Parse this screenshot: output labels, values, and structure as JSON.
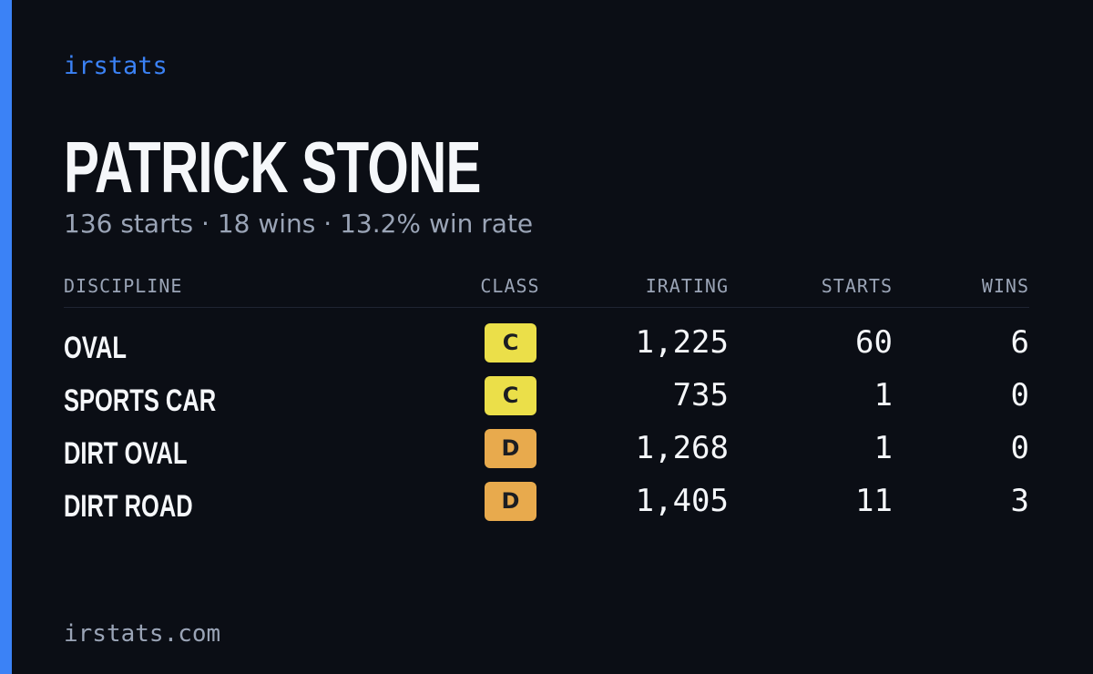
{
  "brand": "irstats",
  "driver": {
    "name": "PATRICK STONE",
    "summary": "136 starts · 18 wins · 13.2% win rate"
  },
  "table": {
    "headers": [
      "DISCIPLINE",
      "CLASS",
      "IRATING",
      "STARTS",
      "WINS"
    ],
    "rows": [
      [
        "OVAL",
        "C",
        "1,225",
        "60",
        "6"
      ],
      [
        "SPORTS CAR",
        "C",
        "735",
        "1",
        "0"
      ],
      [
        "DIRT OVAL",
        "D",
        "1,268",
        "1",
        "0"
      ],
      [
        "DIRT ROAD",
        "D",
        "1,405",
        "11",
        "3"
      ]
    ],
    "class_colors": {
      "C": "#ebdf49",
      "D": "#e8aa4d"
    }
  },
  "footer": "irstats.com"
}
